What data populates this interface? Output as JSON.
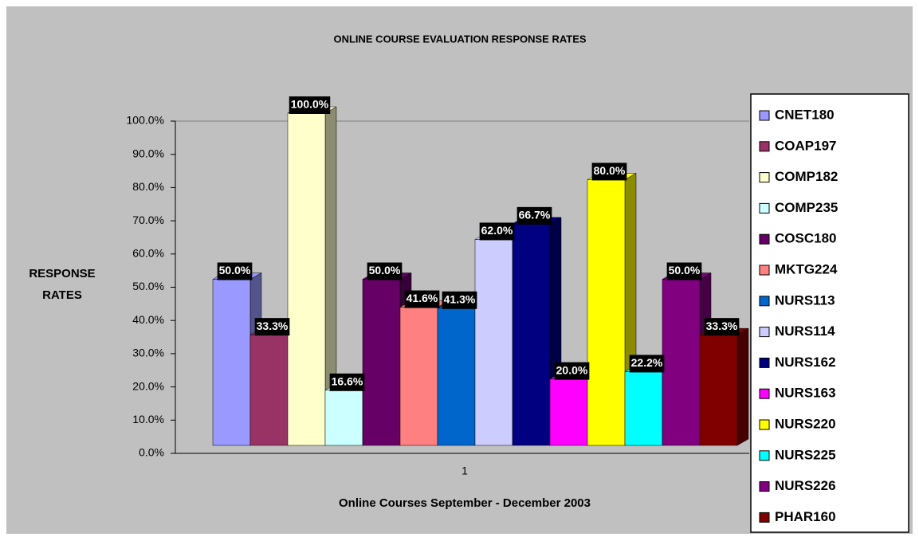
{
  "chart_data": {
    "type": "bar",
    "title": "ONLINE COURSE EVALUATION RESPONSE RATES",
    "y_label": "RESPONSE RATES",
    "x_label": "Online Courses September - December 2003",
    "categories": [
      "1"
    ],
    "series": [
      {
        "name": "CNET180",
        "color": "#9999ff",
        "values": [
          50.0
        ],
        "value_labels": [
          "50.0%"
        ]
      },
      {
        "name": "COAP197",
        "color": "#993366",
        "values": [
          33.3
        ],
        "value_labels": [
          "33.3%"
        ]
      },
      {
        "name": "COMP182",
        "color": "#ffffcc",
        "values": [
          100.0
        ],
        "value_labels": [
          "100.0%"
        ]
      },
      {
        "name": "COMP235",
        "color": "#ccffff",
        "values": [
          16.6
        ],
        "value_labels": [
          "16.6%"
        ]
      },
      {
        "name": "COSC180",
        "color": "#660066",
        "values": [
          50.0
        ],
        "value_labels": [
          "50.0%"
        ]
      },
      {
        "name": "MKTG224",
        "color": "#ff8080",
        "values": [
          41.6
        ],
        "value_labels": [
          "41.6%"
        ]
      },
      {
        "name": "NURS113",
        "color": "#0066cc",
        "values": [
          41.3
        ],
        "value_labels": [
          "41.3%"
        ]
      },
      {
        "name": "NURS114",
        "color": "#ccccff",
        "values": [
          62.0
        ],
        "value_labels": [
          "62.0%"
        ]
      },
      {
        "name": "NURS162",
        "color": "#000080",
        "values": [
          66.7
        ],
        "value_labels": [
          "66.7%"
        ]
      },
      {
        "name": "NURS163",
        "color": "#ff00ff",
        "values": [
          20.0
        ],
        "value_labels": [
          "20.0%"
        ]
      },
      {
        "name": "NURS220",
        "color": "#ffff00",
        "values": [
          80.0
        ],
        "value_labels": [
          "80.0%"
        ]
      },
      {
        "name": "NURS225",
        "color": "#00ffff",
        "values": [
          22.2
        ],
        "value_labels": [
          "22.2%"
        ]
      },
      {
        "name": "NURS226",
        "color": "#800080",
        "values": [
          50.0
        ],
        "value_labels": [
          "50.0%"
        ]
      },
      {
        "name": "PHAR160",
        "color": "#800000",
        "values": [
          33.3
        ],
        "value_labels": [
          "33.3%"
        ]
      }
    ],
    "ylim": [
      0,
      100
    ],
    "yticks": [
      {
        "value": 0,
        "label": "0.0%"
      },
      {
        "value": 10,
        "label": "10.0%"
      },
      {
        "value": 20,
        "label": "20.0%"
      },
      {
        "value": 30,
        "label": "30.0%"
      },
      {
        "value": 40,
        "label": "40.0%"
      },
      {
        "value": 50,
        "label": "50.0%"
      },
      {
        "value": 60,
        "label": "60.0%"
      },
      {
        "value": 70,
        "label": "70.0%"
      },
      {
        "value": 80,
        "label": "80.0%"
      },
      {
        "value": 90,
        "label": "90.0%"
      },
      {
        "value": 100,
        "label": "100.0%"
      }
    ],
    "grid": false,
    "legend": "right"
  }
}
